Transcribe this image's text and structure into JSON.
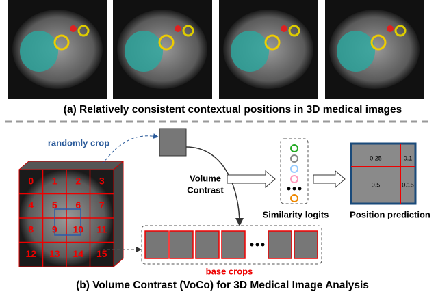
{
  "caption_a": "(a) Relatively consistent contextual positions in 3D medical images",
  "randomly_crop": "randomly crop",
  "volume_contrast": [
    "Volume",
    "Contrast"
  ],
  "grid_labels": [
    0,
    1,
    2,
    3,
    4,
    5,
    6,
    7,
    8,
    9,
    10,
    11,
    12,
    13,
    14,
    15
  ],
  "similarity_logits": "Similarity logits",
  "position_prediction": {
    "title": "Position prediction",
    "values": [
      0.25,
      0.1,
      0.5,
      0.15
    ]
  },
  "base_crops": "base crops",
  "caption_b": "(b) Volume Contrast (VoCo) for 3D Medical Image Analysis"
}
